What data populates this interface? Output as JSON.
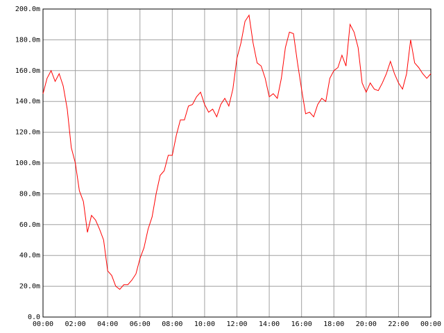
{
  "chart_data": {
    "type": "line",
    "x": [
      0,
      0.25,
      0.5,
      0.75,
      1,
      1.25,
      1.5,
      1.75,
      2,
      2.25,
      2.5,
      2.75,
      3,
      3.25,
      3.5,
      3.75,
      4,
      4.25,
      4.5,
      4.75,
      5,
      5.25,
      5.5,
      5.75,
      6,
      6.25,
      6.5,
      6.75,
      7,
      7.25,
      7.5,
      7.75,
      8,
      8.25,
      8.5,
      8.75,
      9,
      9.25,
      9.5,
      9.75,
      10,
      10.25,
      10.5,
      10.75,
      11,
      11.25,
      11.5,
      11.75,
      12,
      12.25,
      12.5,
      12.75,
      13,
      13.25,
      13.5,
      13.75,
      14,
      14.25,
      14.5,
      14.75,
      15,
      15.25,
      15.5,
      15.75,
      16,
      16.25,
      16.5,
      16.75,
      17,
      17.25,
      17.5,
      17.75,
      18,
      18.25,
      18.5,
      18.75,
      19,
      19.25,
      19.5,
      19.75,
      20,
      20.25,
      20.5,
      20.75,
      21,
      21.25,
      21.5,
      21.75,
      22,
      22.25,
      22.5,
      22.75,
      23,
      23.25,
      23.5,
      23.75,
      24
    ],
    "series": [
      {
        "color": "#ff0000",
        "values": [
          145,
          155,
          160,
          153,
          158,
          150,
          135,
          110,
          100,
          82,
          75,
          55,
          66,
          63,
          57,
          50,
          30,
          27,
          20,
          18,
          21,
          21,
          24,
          28,
          38,
          45,
          57,
          65,
          80,
          92,
          95,
          105,
          105,
          118,
          128,
          128,
          137,
          138,
          143,
          146,
          138,
          133,
          135,
          130,
          138,
          142,
          137,
          148,
          168,
          178,
          192,
          196,
          178,
          165,
          163,
          155,
          143,
          145,
          142,
          155,
          175,
          185,
          184,
          165,
          148,
          132,
          133,
          130,
          138,
          142,
          140,
          155,
          160,
          162,
          170,
          163,
          190,
          185,
          175,
          152,
          146,
          152,
          148,
          147,
          152,
          158,
          166,
          158,
          152,
          148,
          158,
          180,
          165,
          162,
          158,
          155,
          158
        ]
      }
    ],
    "xlim": [
      0,
      24
    ],
    "xticks": [
      {
        "value": 0,
        "label": "00:00"
      },
      {
        "value": 2,
        "label": "02:00"
      },
      {
        "value": 4,
        "label": "04:00"
      },
      {
        "value": 6,
        "label": "06:00"
      },
      {
        "value": 8,
        "label": "08:00"
      },
      {
        "value": 10,
        "label": "10:00"
      },
      {
        "value": 12,
        "label": "12:00"
      },
      {
        "value": 14,
        "label": "14:00"
      },
      {
        "value": 16,
        "label": "16:00"
      },
      {
        "value": 18,
        "label": "18:00"
      },
      {
        "value": 20,
        "label": "20:00"
      },
      {
        "value": 22,
        "label": "22:00"
      },
      {
        "value": 24,
        "label": "00:00"
      }
    ],
    "ylim": [
      0,
      200
    ],
    "yticks": [
      {
        "value": 0,
        "label": "0.0"
      },
      {
        "value": 20,
        "label": "20.0m"
      },
      {
        "value": 40,
        "label": "40.0m"
      },
      {
        "value": 60,
        "label": "60.0m"
      },
      {
        "value": 80,
        "label": "80.0m"
      },
      {
        "value": 100,
        "label": "100.0m"
      },
      {
        "value": 120,
        "label": "120.0m"
      },
      {
        "value": 140,
        "label": "140.0m"
      },
      {
        "value": 160,
        "label": "160.0m"
      },
      {
        "value": 180,
        "label": "180.0m"
      },
      {
        "value": 200,
        "label": "200.0m"
      }
    ],
    "grid": true
  }
}
